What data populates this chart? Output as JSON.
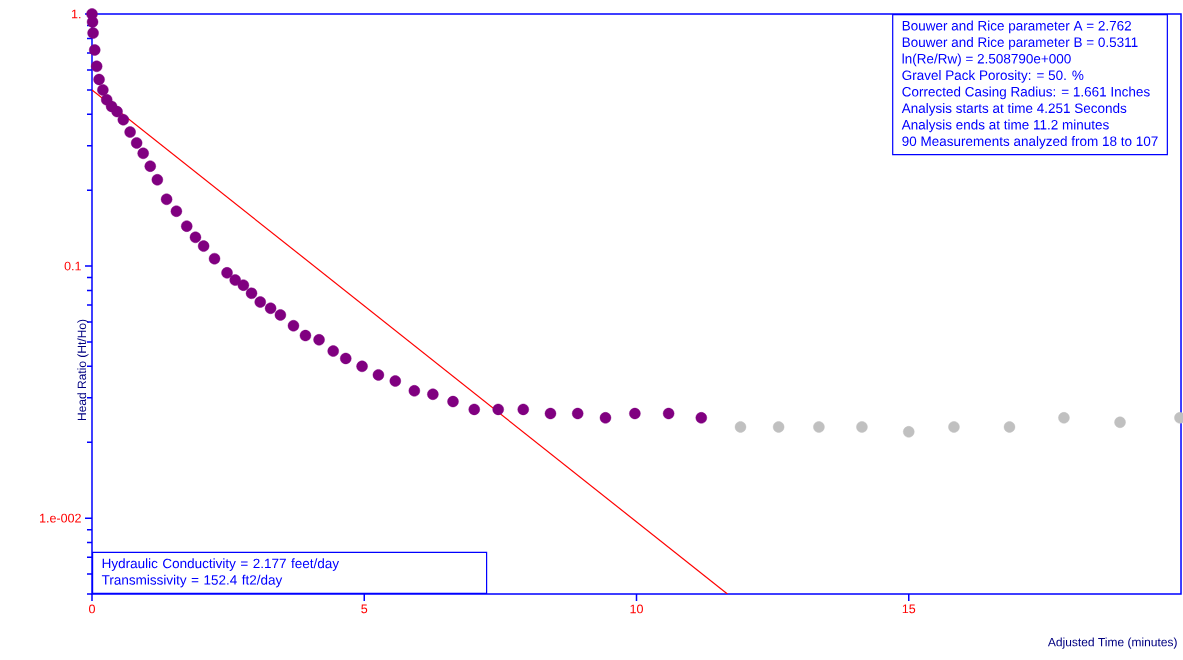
{
  "chart_data": {
    "type": "scatter",
    "xlabel": "Adjusted Time (minutes)",
    "ylabel": "Head Ratio (Ht/Ho)",
    "log": "y",
    "xlim": [
      0,
      20
    ],
    "ylim": [
      0.005,
      1
    ],
    "xticks": [
      0,
      5,
      10,
      15
    ],
    "yticks": [
      {
        "value": 1,
        "label": "1."
      },
      {
        "value": 0.1,
        "label": "0.1"
      },
      {
        "value": 0.01,
        "label": "1.e-002"
      }
    ],
    "grid": false,
    "series": [
      {
        "color": "#800080",
        "x": [
          0,
          0.01,
          0.02,
          0.05,
          0.086,
          0.13,
          0.2,
          0.27,
          0.36,
          0.46,
          0.575,
          0.7,
          0.82,
          0.94,
          1.07,
          1.2,
          1.37,
          1.55,
          1.74,
          1.9,
          2.05,
          2.25,
          2.48,
          2.63,
          2.78,
          2.93,
          3.09,
          3.28,
          3.46,
          3.7,
          3.92,
          4.17,
          4.43,
          4.66,
          4.96,
          5.26,
          5.57,
          5.92,
          6.26,
          6.63,
          7.02,
          7.46,
          7.92,
          8.42,
          8.92,
          9.43,
          9.97,
          10.59,
          11.19
        ],
        "values": [
          1.0,
          0.93,
          0.84,
          0.72,
          0.62,
          0.55,
          0.5,
          0.457,
          0.43,
          0.41,
          0.381,
          0.34,
          0.308,
          0.28,
          0.249,
          0.22,
          0.184,
          0.165,
          0.144,
          0.13,
          0.12,
          0.107,
          0.094,
          0.088,
          0.084,
          0.078,
          0.072,
          0.068,
          0.064,
          0.058,
          0.053,
          0.051,
          0.046,
          0.043,
          0.04,
          0.037,
          0.035,
          0.032,
          0.031,
          0.029,
          0.027,
          0.027,
          0.027,
          0.026,
          0.026,
          0.025,
          0.026,
          0.026,
          0.025
        ]
      },
      {
        "color": "#c0c0c0",
        "x": [
          11.91,
          12.61,
          13.35,
          14.14,
          15.0,
          15.83,
          16.85,
          17.85,
          18.88,
          19.98
        ],
        "values": [
          0.023,
          0.023,
          0.023,
          0.023,
          0.022,
          0.023,
          0.023,
          0.025,
          0.024,
          0.025
        ]
      },
      {
        "type": "line",
        "color": "#ff0000",
        "line_style": "solid",
        "x": [
          0,
          11.67
        ],
        "values": [
          0.5,
          0.005
        ]
      }
    ],
    "annotations": [
      "Bouwer and Rice parameter A = 2.762",
      "Bouwer and Rice parameter B = 0.5311",
      "ln(Re/Rw) = 2.508790e+000",
      "Gravel Pack Porosity: = 50. %",
      "Corrected Casing Radius: = 1.661 Inches",
      "Analysis starts at time 4.251 Seconds",
      "Analysis ends at time 11.2 minutes",
      "90 Measurements analyzed from 18 to 107",
      "Hydraulic Conductivity = 2.177 feet/day",
      "Transmissivity = 152.4 ft2/day"
    ]
  }
}
